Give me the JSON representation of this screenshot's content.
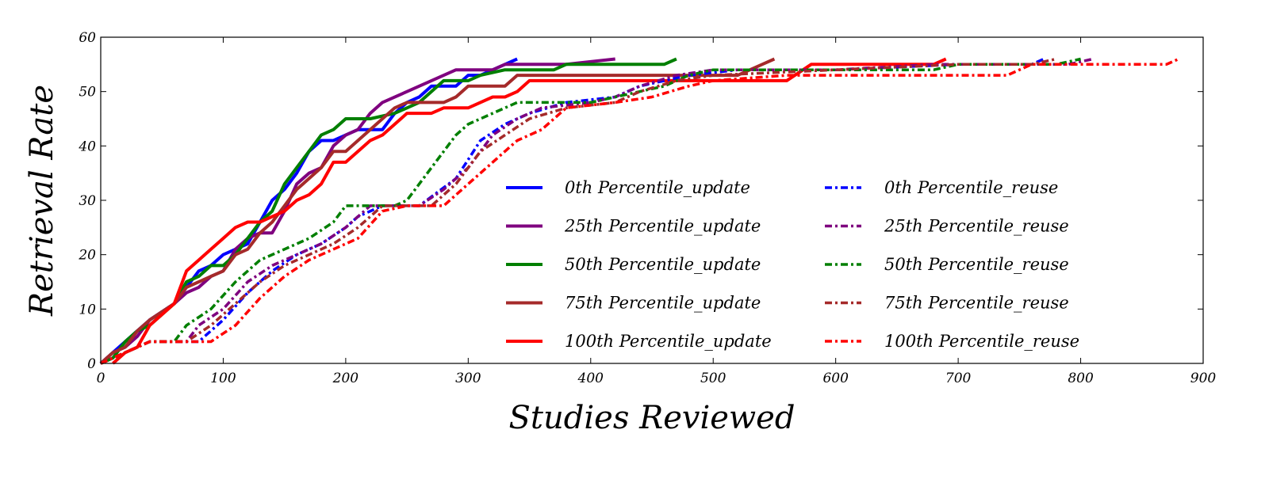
{
  "chart_data": {
    "type": "line",
    "title": "",
    "xlabel": "Studies Reviewed",
    "ylabel": "Retrieval Rate",
    "xlim": [
      0,
      900
    ],
    "ylim": [
      0,
      60
    ],
    "xticks": [
      0,
      100,
      200,
      300,
      400,
      500,
      600,
      700,
      800,
      900
    ],
    "yticks": [
      0,
      10,
      20,
      30,
      40,
      50,
      60
    ],
    "grid": false,
    "legend": {
      "placement": "center-right",
      "columns": 2
    },
    "series": [
      {
        "name": "0th Percentile_update",
        "color": "#0000ff",
        "style": "solid",
        "points": [
          [
            0,
            0
          ],
          [
            10,
            2
          ],
          [
            20,
            4
          ],
          [
            30,
            6
          ],
          [
            40,
            8
          ],
          [
            60,
            11
          ],
          [
            70,
            14
          ],
          [
            80,
            17
          ],
          [
            90,
            18
          ],
          [
            100,
            20
          ],
          [
            110,
            21
          ],
          [
            120,
            22
          ],
          [
            130,
            26
          ],
          [
            140,
            30
          ],
          [
            150,
            32
          ],
          [
            160,
            35
          ],
          [
            170,
            39
          ],
          [
            180,
            41
          ],
          [
            190,
            41
          ],
          [
            200,
            42
          ],
          [
            210,
            43
          ],
          [
            220,
            43
          ],
          [
            230,
            43
          ],
          [
            240,
            46
          ],
          [
            250,
            48
          ],
          [
            260,
            49
          ],
          [
            270,
            51
          ],
          [
            280,
            51
          ],
          [
            290,
            51
          ],
          [
            300,
            53
          ],
          [
            310,
            53
          ],
          [
            320,
            54
          ],
          [
            330,
            55
          ],
          [
            340,
            56
          ]
        ]
      },
      {
        "name": "25th Percentile_update",
        "color": "#7f007f",
        "style": "solid",
        "points": [
          [
            0,
            0
          ],
          [
            10,
            2
          ],
          [
            20,
            3
          ],
          [
            30,
            5
          ],
          [
            40,
            8
          ],
          [
            60,
            11
          ],
          [
            70,
            13
          ],
          [
            80,
            14
          ],
          [
            90,
            16
          ],
          [
            100,
            17
          ],
          [
            110,
            21
          ],
          [
            120,
            23
          ],
          [
            130,
            24
          ],
          [
            140,
            24
          ],
          [
            150,
            28
          ],
          [
            160,
            33
          ],
          [
            170,
            35
          ],
          [
            180,
            36
          ],
          [
            190,
            40
          ],
          [
            200,
            42
          ],
          [
            210,
            43
          ],
          [
            220,
            46
          ],
          [
            230,
            48
          ],
          [
            250,
            50
          ],
          [
            270,
            52
          ],
          [
            290,
            54
          ],
          [
            320,
            54
          ],
          [
            330,
            55
          ],
          [
            360,
            55
          ],
          [
            380,
            55
          ],
          [
            420,
            56
          ]
        ]
      },
      {
        "name": "50th Percentile_update",
        "color": "#007f00",
        "style": "solid",
        "points": [
          [
            0,
            0
          ],
          [
            10,
            1
          ],
          [
            20,
            4
          ],
          [
            30,
            6
          ],
          [
            40,
            7
          ],
          [
            60,
            11
          ],
          [
            70,
            15
          ],
          [
            80,
            16
          ],
          [
            90,
            18
          ],
          [
            100,
            18
          ],
          [
            110,
            20
          ],
          [
            120,
            23
          ],
          [
            130,
            26
          ],
          [
            140,
            28
          ],
          [
            150,
            33
          ],
          [
            160,
            36
          ],
          [
            170,
            39
          ],
          [
            180,
            42
          ],
          [
            190,
            43
          ],
          [
            200,
            45
          ],
          [
            220,
            45
          ],
          [
            240,
            46
          ],
          [
            260,
            48
          ],
          [
            280,
            52
          ],
          [
            300,
            52
          ],
          [
            310,
            53
          ],
          [
            330,
            54
          ],
          [
            370,
            54
          ],
          [
            380,
            55
          ],
          [
            460,
            55
          ],
          [
            470,
            56
          ]
        ]
      },
      {
        "name": "75th Percentile_update",
        "color": "#a52a2a",
        "style": "solid",
        "points": [
          [
            0,
            0
          ],
          [
            10,
            2
          ],
          [
            20,
            3
          ],
          [
            30,
            6
          ],
          [
            40,
            8
          ],
          [
            60,
            11
          ],
          [
            70,
            14
          ],
          [
            80,
            15
          ],
          [
            90,
            16
          ],
          [
            100,
            17
          ],
          [
            110,
            20
          ],
          [
            120,
            21
          ],
          [
            130,
            24
          ],
          [
            140,
            26
          ],
          [
            150,
            29
          ],
          [
            160,
            32
          ],
          [
            170,
            34
          ],
          [
            180,
            36
          ],
          [
            190,
            39
          ],
          [
            200,
            39
          ],
          [
            210,
            41
          ],
          [
            220,
            43
          ],
          [
            230,
            45
          ],
          [
            240,
            47
          ],
          [
            250,
            48
          ],
          [
            260,
            48
          ],
          [
            280,
            48
          ],
          [
            290,
            49
          ],
          [
            300,
            51
          ],
          [
            330,
            51
          ],
          [
            340,
            53
          ],
          [
            520,
            53
          ],
          [
            540,
            55
          ],
          [
            550,
            56
          ]
        ]
      },
      {
        "name": "100th Percentile_update",
        "color": "#ff0000",
        "style": "solid",
        "points": [
          [
            10,
            0
          ],
          [
            20,
            2
          ],
          [
            30,
            3
          ],
          [
            40,
            7
          ],
          [
            60,
            11
          ],
          [
            70,
            17
          ],
          [
            80,
            19
          ],
          [
            90,
            21
          ],
          [
            100,
            23
          ],
          [
            110,
            25
          ],
          [
            120,
            26
          ],
          [
            130,
            26
          ],
          [
            140,
            27
          ],
          [
            150,
            28
          ],
          [
            160,
            30
          ],
          [
            170,
            31
          ],
          [
            180,
            33
          ],
          [
            190,
            37
          ],
          [
            200,
            37
          ],
          [
            210,
            39
          ],
          [
            220,
            41
          ],
          [
            230,
            42
          ],
          [
            240,
            44
          ],
          [
            250,
            46
          ],
          [
            270,
            46
          ],
          [
            280,
            47
          ],
          [
            300,
            47
          ],
          [
            320,
            49
          ],
          [
            330,
            49
          ],
          [
            340,
            50
          ],
          [
            350,
            52
          ],
          [
            560,
            52
          ],
          [
            580,
            55
          ],
          [
            680,
            55
          ],
          [
            690,
            56
          ]
        ]
      },
      {
        "name": "0th Percentile_reuse",
        "color": "#0000ff",
        "style": "dashdot",
        "points": [
          [
            0,
            0
          ],
          [
            20,
            2
          ],
          [
            40,
            4
          ],
          [
            80,
            4
          ],
          [
            100,
            8
          ],
          [
            120,
            13
          ],
          [
            140,
            17
          ],
          [
            160,
            20
          ],
          [
            180,
            22
          ],
          [
            200,
            25
          ],
          [
            210,
            27
          ],
          [
            230,
            29
          ],
          [
            260,
            29
          ],
          [
            290,
            34
          ],
          [
            310,
            41
          ],
          [
            330,
            44
          ],
          [
            350,
            46
          ],
          [
            380,
            48
          ],
          [
            420,
            49
          ],
          [
            440,
            51
          ],
          [
            480,
            53
          ],
          [
            520,
            54
          ],
          [
            600,
            54
          ],
          [
            700,
            55
          ],
          [
            760,
            55
          ],
          [
            770,
            56
          ]
        ]
      },
      {
        "name": "25th Percentile_reuse",
        "color": "#7f007f",
        "style": "dashdot",
        "points": [
          [
            0,
            0
          ],
          [
            20,
            2
          ],
          [
            40,
            4
          ],
          [
            70,
            4
          ],
          [
            80,
            7
          ],
          [
            100,
            10
          ],
          [
            120,
            15
          ],
          [
            140,
            18
          ],
          [
            160,
            20
          ],
          [
            180,
            22
          ],
          [
            200,
            25
          ],
          [
            210,
            27
          ],
          [
            220,
            29
          ],
          [
            260,
            29
          ],
          [
            280,
            32
          ],
          [
            300,
            36
          ],
          [
            320,
            42
          ],
          [
            340,
            45
          ],
          [
            360,
            47
          ],
          [
            400,
            48
          ],
          [
            420,
            49
          ],
          [
            440,
            51
          ],
          [
            470,
            53
          ],
          [
            500,
            54
          ],
          [
            600,
            54
          ],
          [
            680,
            55
          ],
          [
            790,
            55
          ],
          [
            810,
            56
          ]
        ]
      },
      {
        "name": "50th Percentile_reuse",
        "color": "#007f00",
        "style": "dashdot",
        "points": [
          [
            0,
            0
          ],
          [
            20,
            2
          ],
          [
            40,
            4
          ],
          [
            60,
            4
          ],
          [
            70,
            7
          ],
          [
            90,
            10
          ],
          [
            110,
            15
          ],
          [
            130,
            19
          ],
          [
            150,
            21
          ],
          [
            170,
            23
          ],
          [
            190,
            26
          ],
          [
            200,
            29
          ],
          [
            240,
            29
          ],
          [
            250,
            30
          ],
          [
            270,
            36
          ],
          [
            290,
            42
          ],
          [
            300,
            44
          ],
          [
            320,
            46
          ],
          [
            340,
            48
          ],
          [
            400,
            48
          ],
          [
            420,
            49
          ],
          [
            460,
            51
          ],
          [
            480,
            53
          ],
          [
            500,
            54
          ],
          [
            600,
            54
          ],
          [
            680,
            54
          ],
          [
            700,
            55
          ],
          [
            780,
            55
          ],
          [
            800,
            56
          ]
        ]
      },
      {
        "name": "75th Percentile_reuse",
        "color": "#a52a2a",
        "style": "dashdot",
        "points": [
          [
            0,
            0
          ],
          [
            20,
            2
          ],
          [
            40,
            4
          ],
          [
            70,
            4
          ],
          [
            90,
            7
          ],
          [
            110,
            11
          ],
          [
            130,
            15
          ],
          [
            150,
            18
          ],
          [
            170,
            20
          ],
          [
            190,
            22
          ],
          [
            210,
            25
          ],
          [
            230,
            29
          ],
          [
            270,
            29
          ],
          [
            290,
            33
          ],
          [
            310,
            39
          ],
          [
            330,
            42
          ],
          [
            350,
            45
          ],
          [
            380,
            47
          ],
          [
            420,
            48
          ],
          [
            440,
            50
          ],
          [
            470,
            52
          ],
          [
            500,
            53
          ],
          [
            600,
            54
          ],
          [
            700,
            55
          ],
          [
            760,
            55
          ],
          [
            780,
            56
          ]
        ]
      },
      {
        "name": "100th Percentile_reuse",
        "color": "#ff0000",
        "style": "dashdot",
        "points": [
          [
            0,
            0
          ],
          [
            20,
            2
          ],
          [
            40,
            4
          ],
          [
            90,
            4
          ],
          [
            110,
            7
          ],
          [
            130,
            12
          ],
          [
            150,
            16
          ],
          [
            170,
            19
          ],
          [
            190,
            21
          ],
          [
            210,
            23
          ],
          [
            230,
            28
          ],
          [
            250,
            29
          ],
          [
            280,
            29
          ],
          [
            300,
            33
          ],
          [
            320,
            37
          ],
          [
            340,
            41
          ],
          [
            360,
            43
          ],
          [
            380,
            47
          ],
          [
            420,
            48
          ],
          [
            450,
            49
          ],
          [
            480,
            51
          ],
          [
            500,
            52
          ],
          [
            560,
            53
          ],
          [
            740,
            53
          ],
          [
            760,
            55
          ],
          [
            870,
            55
          ],
          [
            880,
            56
          ]
        ]
      }
    ]
  }
}
